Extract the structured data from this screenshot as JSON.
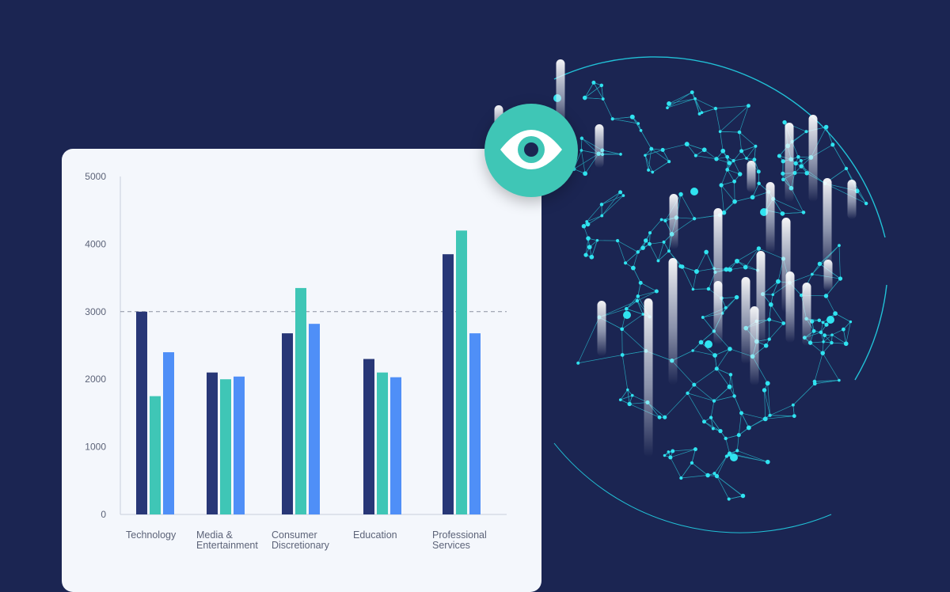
{
  "colors": {
    "background": "#1b2552",
    "card": "#f4f7fc",
    "accent_teal": "#3fc6b6",
    "globe_cyan": "#22d3e6"
  },
  "icons": {
    "badge": "eye-icon",
    "decoration": "globe-network-icon"
  },
  "chart_data": {
    "type": "bar",
    "categories": [
      [
        "Technology"
      ],
      [
        "Media &",
        "Entertainment"
      ],
      [
        "Consumer",
        "Discretionary"
      ],
      [
        "Education"
      ],
      [
        "Professional",
        "Services"
      ]
    ],
    "series": [
      {
        "color": "#283777",
        "values": [
          3000,
          2100,
          2680,
          2300,
          3850
        ]
      },
      {
        "color": "#3fc6b6",
        "values": [
          1750,
          2000,
          3350,
          2100,
          4200
        ]
      },
      {
        "color": "#4f8ff7",
        "values": [
          2400,
          2040,
          2820,
          2030,
          2680
        ]
      }
    ],
    "ylim": [
      0,
      5000
    ],
    "yticks": [
      0,
      1000,
      2000,
      3000,
      4000,
      5000
    ],
    "reference_line": 3000,
    "grid": false
  }
}
